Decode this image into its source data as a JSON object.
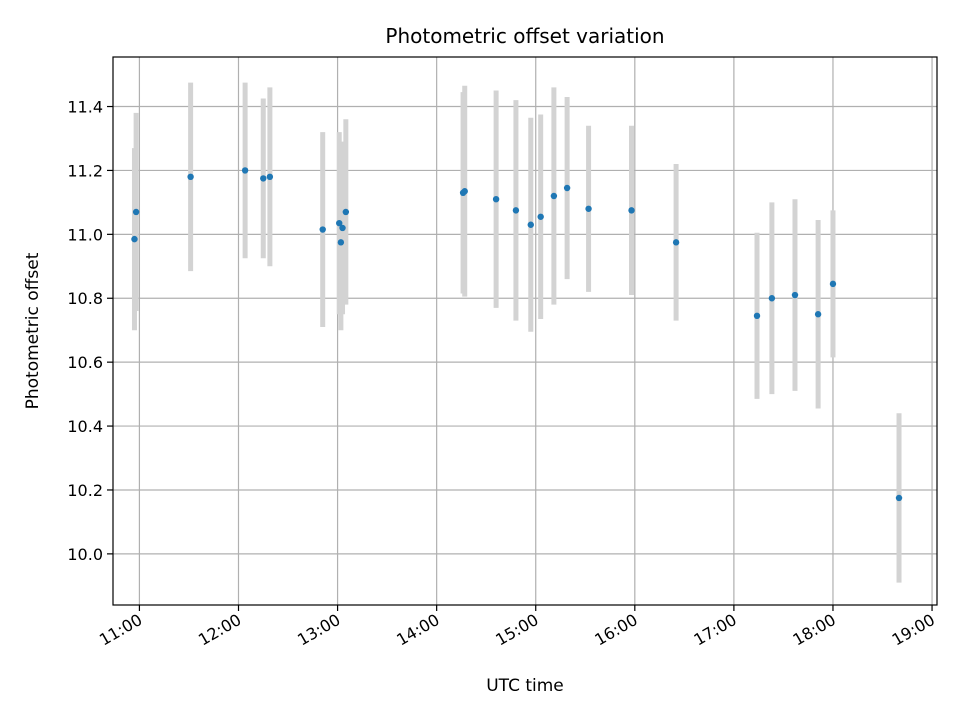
{
  "chart_data": {
    "type": "scatter",
    "title": "Photometric offset variation",
    "xlabel": "UTC time",
    "ylabel": "Photometric offset",
    "x_ticks": [
      "11:00",
      "12:00",
      "13:00",
      "14:00",
      "15:00",
      "16:00",
      "17:00",
      "18:00",
      "19:00"
    ],
    "y_ticks": [
      "10.0",
      "10.2",
      "10.4",
      "10.6",
      "10.8",
      "11.0",
      "11.2",
      "11.4"
    ],
    "xlim": [
      "10:44",
      "19:03"
    ],
    "ylim": [
      9.84,
      11.555
    ],
    "grid": true,
    "point_color": "#1f77b4",
    "errorbar_color": "#d3d3d3",
    "points": [
      {
        "x": "10:57",
        "y": 10.985,
        "err": 0.285
      },
      {
        "x": "10:58",
        "y": 11.07,
        "err": 0.31
      },
      {
        "x": "11:31",
        "y": 11.18,
        "err": 0.295
      },
      {
        "x": "12:04",
        "y": 11.2,
        "err": 0.275
      },
      {
        "x": "12:15",
        "y": 11.175,
        "err": 0.25
      },
      {
        "x": "12:19",
        "y": 11.18,
        "err": 0.28
      },
      {
        "x": "12:51",
        "y": 11.015,
        "err": 0.305
      },
      {
        "x": "13:01",
        "y": 11.035,
        "err": 0.285
      },
      {
        "x": "13:02",
        "y": 10.975,
        "err": 0.275
      },
      {
        "x": "13:03",
        "y": 11.02,
        "err": 0.27
      },
      {
        "x": "13:05",
        "y": 11.07,
        "err": 0.29
      },
      {
        "x": "14:16",
        "y": 11.13,
        "err": 0.315
      },
      {
        "x": "14:17",
        "y": 11.135,
        "err": 0.33
      },
      {
        "x": "14:36",
        "y": 11.11,
        "err": 0.34
      },
      {
        "x": "14:48",
        "y": 11.075,
        "err": 0.345
      },
      {
        "x": "14:57",
        "y": 11.03,
        "err": 0.335
      },
      {
        "x": "15:03",
        "y": 11.055,
        "err": 0.32
      },
      {
        "x": "15:11",
        "y": 11.12,
        "err": 0.34
      },
      {
        "x": "15:19",
        "y": 11.145,
        "err": 0.285
      },
      {
        "x": "15:32",
        "y": 11.08,
        "err": 0.26
      },
      {
        "x": "15:58",
        "y": 11.075,
        "err": 0.265
      },
      {
        "x": "16:25",
        "y": 10.975,
        "err": 0.245
      },
      {
        "x": "17:14",
        "y": 10.745,
        "err": 0.26
      },
      {
        "x": "17:23",
        "y": 10.8,
        "err": 0.3
      },
      {
        "x": "17:37",
        "y": 10.81,
        "err": 0.3
      },
      {
        "x": "17:51",
        "y": 10.75,
        "err": 0.295
      },
      {
        "x": "18:00",
        "y": 10.845,
        "err": 0.23
      },
      {
        "x": "18:40",
        "y": 10.175,
        "err": 0.265
      }
    ]
  }
}
